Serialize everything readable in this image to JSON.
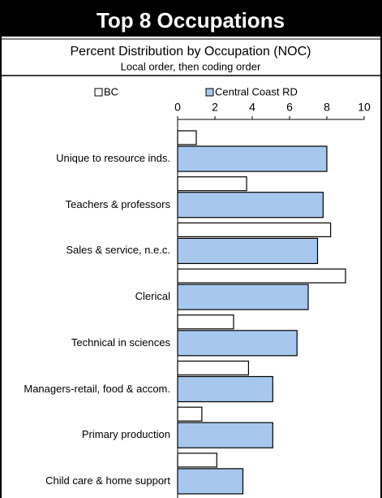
{
  "chart_data": {
    "type": "hbar",
    "title": "Top 8 Occupations",
    "subtitle": "Percent Distribution by Occupation (NOC)",
    "note": "Local order, then coding order",
    "categories": [
      "Unique to resource inds.",
      "Teachers & professors",
      "Sales & service, n.e.c.",
      "Clerical",
      "Technical in sciences",
      "Managers-retail, food & accom.",
      "Primary production",
      "Child care & home support"
    ],
    "series": [
      {
        "name": "BC",
        "color": "#ffffff",
        "values": [
          1.0,
          3.7,
          8.2,
          9.0,
          3.0,
          3.8,
          1.3,
          2.1
        ]
      },
      {
        "name": "Central Coast RD",
        "color": "#a7c8ee",
        "values": [
          8.0,
          7.8,
          7.5,
          7.0,
          6.4,
          5.1,
          5.1,
          3.5
        ]
      }
    ],
    "xlim": [
      0,
      10
    ],
    "xticks": [
      0,
      2,
      4,
      6,
      8,
      10
    ]
  }
}
